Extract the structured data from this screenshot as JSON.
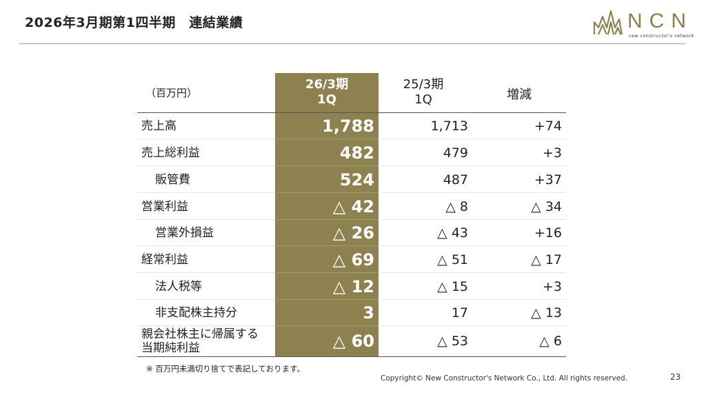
{
  "slide": {
    "title": "2026年3月期第1四半期　連結業績",
    "logo_text": "NCN",
    "logo_tagline": "new constructor's network",
    "brand_color": "#8e8150"
  },
  "table": {
    "unit": "（百万円）",
    "columns": {
      "current": [
        "26/3期",
        "1Q"
      ],
      "previous": [
        "25/3期",
        "1Q"
      ],
      "change": "増減"
    },
    "rows": [
      {
        "label": "売上高",
        "indent": false,
        "current": "1,788",
        "previous": "1,713",
        "change": "+74"
      },
      {
        "label": "売上総利益",
        "indent": false,
        "current": "482",
        "previous": "479",
        "change": "+3"
      },
      {
        "label": "販管費",
        "indent": true,
        "current": "524",
        "previous": "487",
        "change": "+37"
      },
      {
        "label": "営業利益",
        "indent": false,
        "current": "△ 42",
        "previous": "△ 8",
        "change": "△ 34"
      },
      {
        "label": "営業外損益",
        "indent": true,
        "current": "△ 26",
        "previous": "△ 43",
        "change": "+16"
      },
      {
        "label": "経常利益",
        "indent": false,
        "current": "△ 69",
        "previous": "△ 51",
        "change": "△ 17"
      },
      {
        "label": "法人税等",
        "indent": true,
        "current": "△ 12",
        "previous": "△ 15",
        "change": "+3"
      },
      {
        "label": "非支配株主持分",
        "indent": true,
        "current": "3",
        "previous": "17",
        "change": "△ 13"
      },
      {
        "label_lines": [
          "親会社株主に帰属する",
          "当期純利益"
        ],
        "indent": false,
        "current": "△ 60",
        "previous": "△ 53",
        "change": "△ 6"
      }
    ]
  },
  "footer": {
    "note": "※ 百万円未満切り捨てで表記しております。",
    "copyright": "Copyright© New Constructor's Network Co., Ltd. All rights reserved.",
    "page_number": "23"
  }
}
